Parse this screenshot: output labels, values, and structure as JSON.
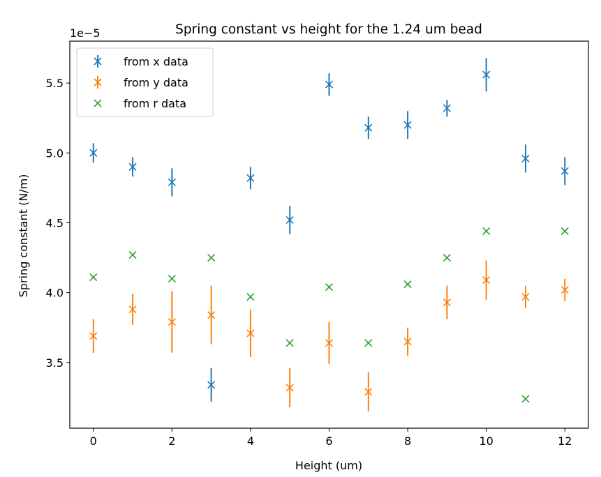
{
  "chart_data": {
    "type": "scatter",
    "title": "Spring constant vs height for the 1.24 um bead",
    "xlabel": "Height (um)",
    "ylabel": "Spring constant (N/m)",
    "offset_text": "1e−5",
    "xlim": [
      -0.6,
      12.6
    ],
    "ylim": [
      3.03,
      5.8
    ],
    "x_ticks": [
      0,
      2,
      4,
      6,
      8,
      10,
      12
    ],
    "x_tick_labels": [
      "0",
      "2",
      "4",
      "6",
      "8",
      "10",
      "12"
    ],
    "y_ticks": [
      3.5,
      4.0,
      4.5,
      5.0,
      5.5
    ],
    "y_tick_labels": [
      "3.5",
      "4.0",
      "4.5",
      "5.0",
      "5.5"
    ],
    "grid": false,
    "legend_position": "upper-left",
    "x": [
      0,
      1,
      2,
      3,
      4,
      5,
      6,
      7,
      8,
      9,
      10,
      11,
      12
    ],
    "series": [
      {
        "name": "from x data",
        "color": "#1f77b4",
        "marker": "x",
        "errorbars": true,
        "values": [
          5.0,
          4.9,
          4.79,
          3.34,
          4.82,
          4.52,
          5.49,
          5.18,
          5.2,
          5.32,
          5.56,
          4.96,
          4.87
        ],
        "errors": [
          0.07,
          0.07,
          0.1,
          0.12,
          0.08,
          0.1,
          0.08,
          0.08,
          0.1,
          0.06,
          0.12,
          0.1,
          0.1
        ]
      },
      {
        "name": "from y data",
        "color": "#ff7f0e",
        "marker": "x",
        "errorbars": true,
        "values": [
          3.69,
          3.88,
          3.79,
          3.84,
          3.71,
          3.32,
          3.64,
          3.29,
          3.65,
          3.93,
          4.09,
          3.97,
          4.02
        ],
        "errors": [
          0.12,
          0.11,
          0.22,
          0.21,
          0.17,
          0.14,
          0.15,
          0.14,
          0.1,
          0.12,
          0.14,
          0.08,
          0.08
        ]
      },
      {
        "name": "from r data",
        "color": "#2ca02c",
        "marker": "x",
        "errorbars": false,
        "values": [
          4.11,
          4.27,
          4.1,
          4.25,
          3.97,
          3.64,
          4.04,
          3.64,
          4.06,
          4.25,
          4.44,
          3.24,
          4.44
        ]
      }
    ]
  }
}
